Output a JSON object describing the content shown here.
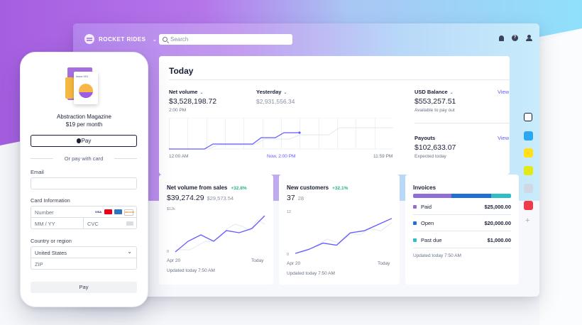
{
  "colors": {
    "accent": "#635bff",
    "positive": "#24b47e",
    "invoice_paid": "#8f6ed5",
    "invoice_open": "#1f6fd6",
    "invoice_past_due": "#2ebfc4"
  },
  "dashboard": {
    "brand": "ROCKET RIDES",
    "search_placeholder": "Search",
    "title": "Today",
    "net_volume": {
      "label": "Net volume",
      "value": "$3,528,198.72",
      "time": "2:00 PM"
    },
    "yesterday": {
      "label": "Yesterday",
      "value": "$2,931,556.34"
    },
    "chart_axis": {
      "start": "12:00 AM",
      "now": "Now, 2:00 PM",
      "end": "11:59 PM"
    },
    "usd_balance": {
      "label": "USD Balance",
      "value": "$553,257.51",
      "sub": "Available to pay out",
      "link": "View"
    },
    "payouts": {
      "label": "Payouts",
      "value": "$102,633.07",
      "sub": "Expected today",
      "link": "View"
    },
    "cards": {
      "net_sales": {
        "title": "Net volume from sales",
        "delta": "+32.8%",
        "value": "$39,274.29",
        "prev": "$29,573.54",
        "y_top": "$12k",
        "y_bottom": "0",
        "x_start": "Apr 20",
        "x_end": "Today",
        "updated": "Updated today 7:50 AM"
      },
      "new_customers": {
        "title": "New customers",
        "delta": "+32.1%",
        "value": "37",
        "prev": "28",
        "y_top": "12",
        "y_bottom": "0",
        "x_start": "Apr 20",
        "x_end": "Today",
        "updated": "Updated today 7:50 AM"
      },
      "invoices": {
        "title": "Invoices",
        "rows": [
          {
            "name": "Paid",
            "amount": "$25,000.00"
          },
          {
            "name": "Open",
            "amount": "$20,000.00"
          },
          {
            "name": "Past due",
            "amount": "$1,000.00"
          }
        ],
        "updated": "Updated today 7:50 AM"
      }
    }
  },
  "checkout": {
    "issue": "Issue 001",
    "product": "Abstraction Magazine",
    "price": "$19 per month",
    "apple_pay": "Pay",
    "or_text": "Or pay with card",
    "email_label": "Email",
    "card_label": "Card Information",
    "card_number_placeholder": "Number",
    "expiry_placeholder": "MM / YY",
    "cvc_placeholder": "CVC",
    "country_label": "Country or region",
    "country_value": "United States",
    "zip_placeholder": "ZIP",
    "pay_button": "Pay",
    "card_brands": [
      "VISA",
      "",
      "",
      "DISCOVER"
    ]
  },
  "chart_data": [
    {
      "type": "line",
      "series": [
        {
          "values": [
            0.1,
            0.1,
            0.1,
            0.2,
            0.3,
            0.3,
            0.4,
            0.6,
            0.7,
            0.65,
            0.55,
            0.8,
            0.7
          ]
        },
        {
          "values": [
            0.05,
            0.3,
            0.45,
            0.3,
            0.55,
            0.5,
            0.6,
            0.9
          ]
        }
      ]
    },
    {
      "type": "line",
      "series": [
        {
          "values": [
            0.05,
            0.1,
            0.25,
            0.4,
            0.3,
            0.55,
            0.5,
            0.65,
            0.6,
            0.8
          ]
        },
        {
          "values": [
            0.05,
            0.15,
            0.3,
            0.25,
            0.55,
            0.6,
            0.75,
            0.9
          ]
        }
      ]
    }
  ]
}
